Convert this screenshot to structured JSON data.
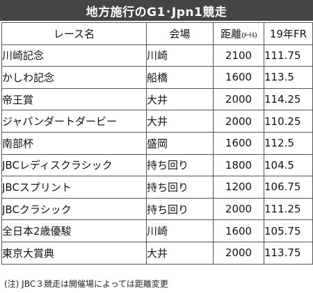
{
  "title": "地方施行のG1･Jpn1競走",
  "columns": {
    "race": "レース名",
    "venue": "会場",
    "distance": "距離",
    "distance_unit": "(ﾒｰﾄﾙ)",
    "fr": "19年FR"
  },
  "rows": [
    {
      "race": "川崎記念",
      "venue": "川崎",
      "distance": "2100",
      "fr": "111.75"
    },
    {
      "race": "かしわ記念",
      "venue": "船橋",
      "distance": "1600",
      "fr": "113.5"
    },
    {
      "race": "帝王賞",
      "venue": "大井",
      "distance": "2000",
      "fr": "114.25"
    },
    {
      "race": "ジャパンダートダービー",
      "venue": "大井",
      "distance": "2000",
      "fr": "110.25"
    },
    {
      "race": "南部杯",
      "venue": "盛岡",
      "distance": "1600",
      "fr": "112.5"
    },
    {
      "race": "JBCレディスクラシック",
      "venue": "持ち回り",
      "distance": "1800",
      "fr": "104.5"
    },
    {
      "race": "JBCスプリント",
      "venue": "持ち回り",
      "distance": "1200",
      "fr": "106.75"
    },
    {
      "race": "JBCクラシック",
      "venue": "持ち回り",
      "distance": "2000",
      "fr": "111.25"
    },
    {
      "race": "全日本2歳優駿",
      "venue": "川崎",
      "distance": "1600",
      "fr": "105.75"
    },
    {
      "race": "東京大賞典",
      "venue": "大井",
      "distance": "2000",
      "fr": "113.75"
    }
  ],
  "note": "(注) JBC３競走は開催場によっては距離変更"
}
